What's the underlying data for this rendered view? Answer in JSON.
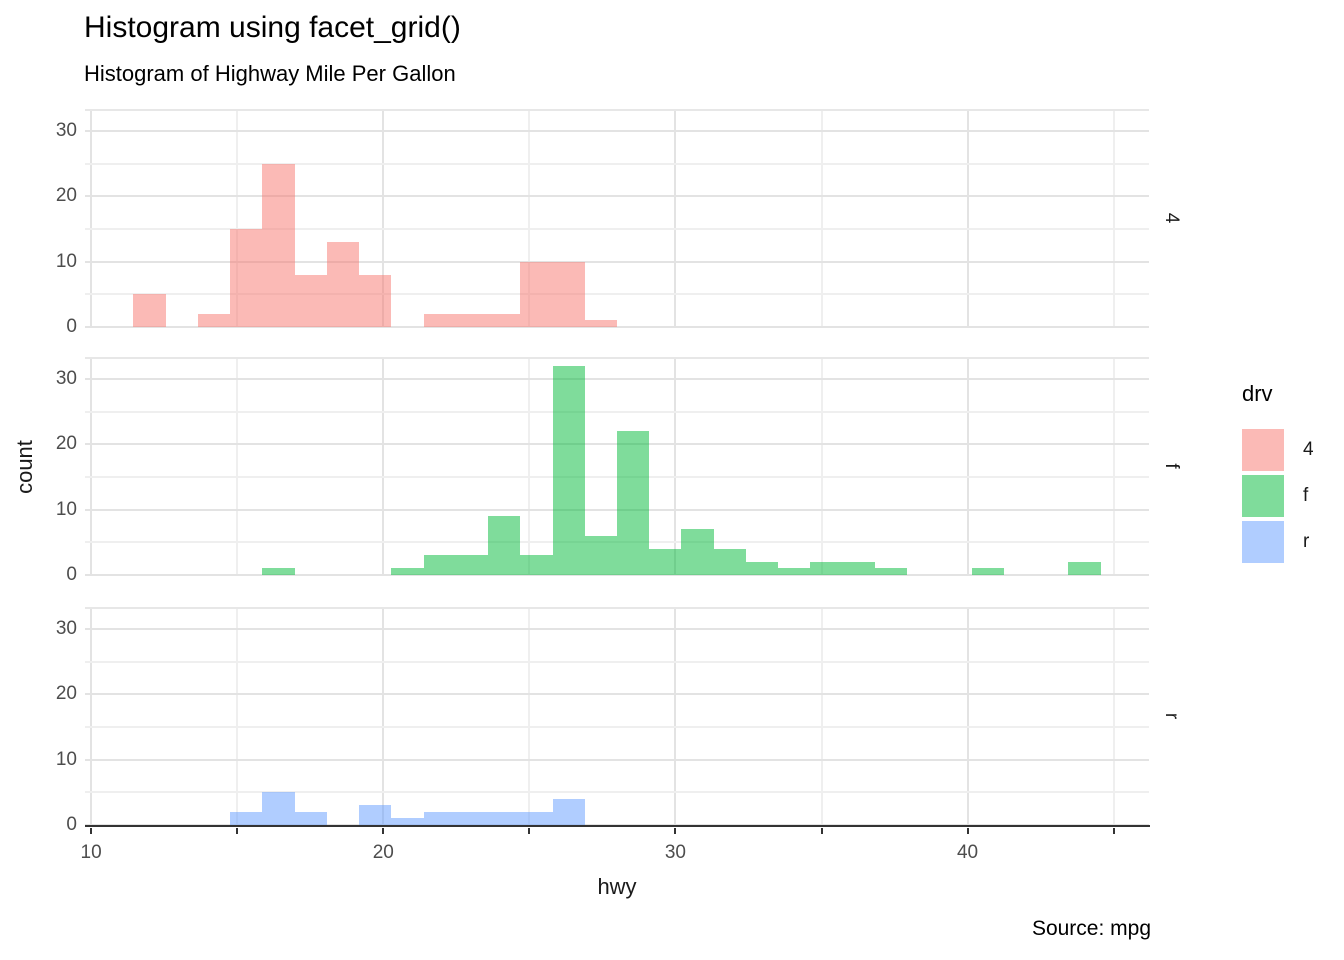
{
  "chart_data": {
    "type": "bar",
    "subtype": "faceted-histogram",
    "title": "Histogram using facet_grid()",
    "subtitle": "Histogram of Highway Mile Per Gallon",
    "caption": "Source: mpg",
    "xlabel": "hwy",
    "ylabel": "count",
    "legend_title": "drv",
    "legend_position": "right",
    "grid": "on",
    "x_range": [
      9.79,
      46.21
    ],
    "y_range": [
      0,
      33.37
    ],
    "x_major_ticks": [
      10,
      20,
      30,
      40
    ],
    "x_minor_ticks": [
      15,
      25,
      35,
      45
    ],
    "y_tick_labels": [
      0,
      10,
      20,
      30
    ],
    "y_major_gridlines": [
      0,
      10,
      20,
      30
    ],
    "y_minor_gridlines": [
      5,
      15,
      25
    ],
    "binwidth": 1.1034,
    "fill_alpha": 0.5,
    "series_colors": {
      "4": "#F8766D",
      "f": "#00BA38",
      "r": "#619CFF"
    },
    "gridline_major_color": "#e3e3e3",
    "gridline_minor_color": "#efefef",
    "axis_line_color": "#333333",
    "facets": [
      {
        "label": "4",
        "drv": "4",
        "bins": [
          {
            "x": 12.0,
            "count": 5
          },
          {
            "x": 14.207,
            "count": 2
          },
          {
            "x": 15.31,
            "count": 15
          },
          {
            "x": 16.414,
            "count": 25
          },
          {
            "x": 17.517,
            "count": 8
          },
          {
            "x": 18.621,
            "count": 13
          },
          {
            "x": 19.724,
            "count": 8
          },
          {
            "x": 21.931,
            "count": 2
          },
          {
            "x": 23.034,
            "count": 2
          },
          {
            "x": 24.138,
            "count": 2
          },
          {
            "x": 25.241,
            "count": 10
          },
          {
            "x": 26.345,
            "count": 10
          },
          {
            "x": 27.448,
            "count": 1
          }
        ]
      },
      {
        "label": "f",
        "drv": "f",
        "bins": [
          {
            "x": 16.414,
            "count": 1
          },
          {
            "x": 20.828,
            "count": 1
          },
          {
            "x": 21.931,
            "count": 3
          },
          {
            "x": 23.034,
            "count": 3
          },
          {
            "x": 24.138,
            "count": 9
          },
          {
            "x": 25.241,
            "count": 3
          },
          {
            "x": 26.345,
            "count": 32
          },
          {
            "x": 27.448,
            "count": 6
          },
          {
            "x": 28.552,
            "count": 22
          },
          {
            "x": 29.655,
            "count": 4
          },
          {
            "x": 30.759,
            "count": 7
          },
          {
            "x": 31.862,
            "count": 4
          },
          {
            "x": 32.966,
            "count": 2
          },
          {
            "x": 34.069,
            "count": 1
          },
          {
            "x": 35.172,
            "count": 2
          },
          {
            "x": 36.276,
            "count": 2
          },
          {
            "x": 37.379,
            "count": 1
          },
          {
            "x": 40.69,
            "count": 1
          },
          {
            "x": 44.0,
            "count": 2
          }
        ]
      },
      {
        "label": "r",
        "drv": "r",
        "bins": [
          {
            "x": 15.31,
            "count": 2
          },
          {
            "x": 16.414,
            "count": 5
          },
          {
            "x": 17.517,
            "count": 2
          },
          {
            "x": 19.724,
            "count": 3
          },
          {
            "x": 20.828,
            "count": 1
          },
          {
            "x": 21.931,
            "count": 2
          },
          {
            "x": 23.034,
            "count": 2
          },
          {
            "x": 24.138,
            "count": 2
          },
          {
            "x": 25.241,
            "count": 2
          },
          {
            "x": 26.345,
            "count": 4
          }
        ]
      }
    ],
    "legend_entries": [
      {
        "label": "4",
        "color": "#F8766D"
      },
      {
        "label": "f",
        "color": "#00BA38"
      },
      {
        "label": "r",
        "color": "#619CFF"
      }
    ]
  }
}
